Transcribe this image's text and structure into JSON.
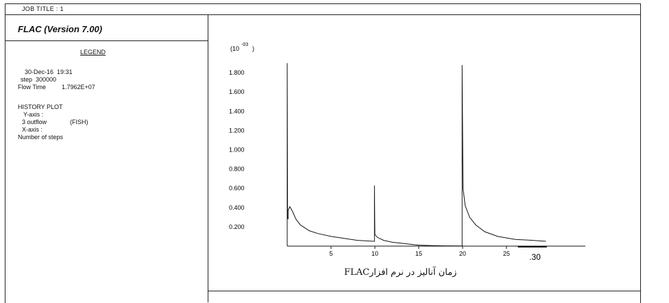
{
  "header": {
    "job_title": "JOB TITLE : 1"
  },
  "app": {
    "title": "FLAC (Version 7.00)"
  },
  "legend": {
    "label": "LEGEND",
    "date_line": "30-Dec-16  19:31",
    "step_line": "step  300000",
    "flow_time_label": "Flow Time",
    "flow_time_value": "1.7962E+07",
    "history_plot": "HISTORY PLOT",
    "y_axis_label": "Y-axis :",
    "y_series_name": "3 outflow",
    "y_series_tag": "(FISH)",
    "x_axis_label": "X-axis :",
    "x_axis_name": "Number of steps"
  },
  "chart_data": {
    "type": "line",
    "y_multiplier_label": "(10",
    "y_multiplier_exp": "-03",
    "y_multiplier_close": ")",
    "y_ticks": [
      "0.200",
      "0.400",
      "0.600",
      "0.800",
      "1.000",
      "1.200",
      "1.400",
      "1.600",
      "1.800"
    ],
    "y_tick_values": [
      0.2,
      0.4,
      0.6,
      0.8,
      1.0,
      1.2,
      1.4,
      1.6,
      1.8
    ],
    "x_ticks": [
      "5",
      "10",
      "15",
      "20",
      "25"
    ],
    "x_tick_values": [
      5,
      10,
      15,
      20,
      25
    ],
    "x_end_label": ".30",
    "xlim": [
      0,
      34
    ],
    "ylim": [
      0,
      2.0
    ],
    "series": [
      {
        "x": [
          0,
          0,
          0.05,
          0.1,
          0.1,
          0.3,
          0.6,
          1.0,
          1.5,
          2.5,
          3.5,
          5,
          6.5,
          8,
          9.9,
          9.95,
          9.95,
          10.0,
          10.3,
          11,
          12,
          13,
          14,
          15,
          16.5,
          18,
          19.9,
          19.95,
          19.95,
          20.05,
          20.3,
          20.8,
          21.5,
          22.5,
          24,
          26,
          28,
          29.5
        ],
        "y": [
          0,
          1.9,
          0.3,
          0.28,
          0.37,
          0.41,
          0.36,
          0.28,
          0.22,
          0.16,
          0.13,
          0.1,
          0.08,
          0.06,
          0.05,
          0.05,
          0.63,
          0.12,
          0.09,
          0.06,
          0.04,
          0.03,
          0.02,
          0.01,
          0.005,
          0.003,
          0.002,
          0.002,
          1.88,
          0.6,
          0.42,
          0.3,
          0.22,
          0.15,
          0.1,
          0.07,
          0.06,
          0.05
        ]
      }
    ]
  },
  "caption": "زمان آنالیز در نرم افزارFLAC"
}
